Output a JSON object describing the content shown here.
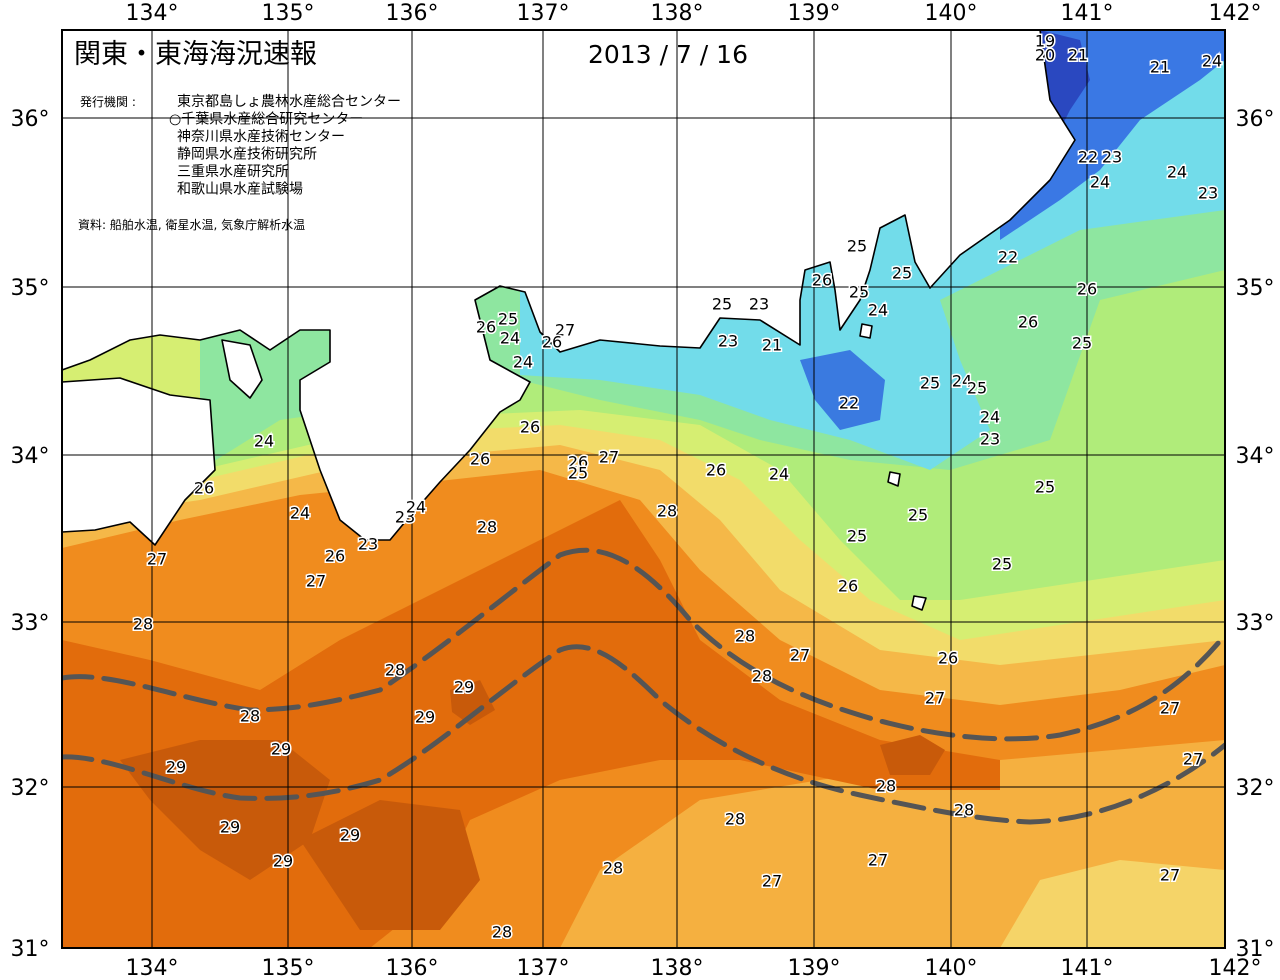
{
  "map": {
    "title": "関東・東海海況速報",
    "date": "2013 / 7 / 16",
    "issuer_label": "発行機関 :",
    "issuers": [
      "東京都島しょ農林水産総合センター",
      "○千葉県水産総合研究センター",
      "神奈川県水産技術センター",
      "静岡県水産技術研究所",
      "三重県水産研究所",
      "和歌山県水産試験場"
    ],
    "source": "資料: 船舶水温, 衛星水温, 気象庁解析水温",
    "lon_labels": [
      "134°",
      "135°",
      "136°",
      "137°",
      "138°",
      "139°",
      "140°",
      "141°",
      "142°"
    ],
    "lat_labels": [
      "36°",
      "35°",
      "34°",
      "33°",
      "32°",
      "31°"
    ],
    "contour_labels": [
      19,
      20,
      21,
      21,
      24,
      22,
      23,
      24,
      24,
      23,
      22,
      26,
      26,
      25,
      25,
      25,
      26,
      25,
      24,
      25,
      23,
      23,
      21,
      22,
      25,
      24,
      25,
      24,
      23,
      25,
      25,
      25,
      25,
      26,
      24,
      26,
      26,
      26,
      26,
      27,
      25,
      28,
      28,
      27,
      26,
      26,
      25,
      24,
      24,
      24,
      26,
      24,
      23,
      24,
      23,
      26,
      27,
      27,
      28,
      28,
      28,
      29,
      29,
      29,
      29,
      29,
      29,
      29,
      28,
      28,
      28,
      27,
      28,
      27,
      28,
      26,
      27,
      28,
      28,
      27,
      27,
      27,
      27
    ]
  }
}
